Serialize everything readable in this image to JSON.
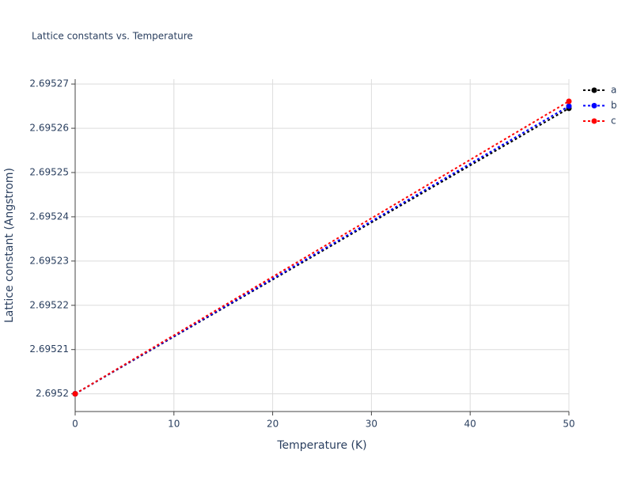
{
  "chart_data": {
    "type": "line",
    "title": "Lattice constants vs. Temperature",
    "x_label": "Temperature (K)",
    "y_label": "Lattice constant (Angstrom)",
    "x": [
      0,
      50
    ],
    "series": [
      {
        "name": "a",
        "color": "#000000",
        "values": [
          2.6952,
          2.6952645
        ]
      },
      {
        "name": "b",
        "color": "#0000ff",
        "values": [
          2.6952,
          2.695265
        ]
      },
      {
        "name": "c",
        "color": "#ff0000",
        "values": [
          2.6952,
          2.6952661
        ]
      }
    ],
    "xlim": [
      0,
      50
    ],
    "xticks": [
      0,
      10,
      20,
      30,
      40,
      50
    ],
    "ylim": [
      2.695196,
      2.6952711
    ],
    "yticks": [
      2.6952,
      2.69521,
      2.69522,
      2.69523,
      2.69524,
      2.69525,
      2.69526,
      2.69527
    ],
    "grid": true,
    "legend": "top-right"
  }
}
